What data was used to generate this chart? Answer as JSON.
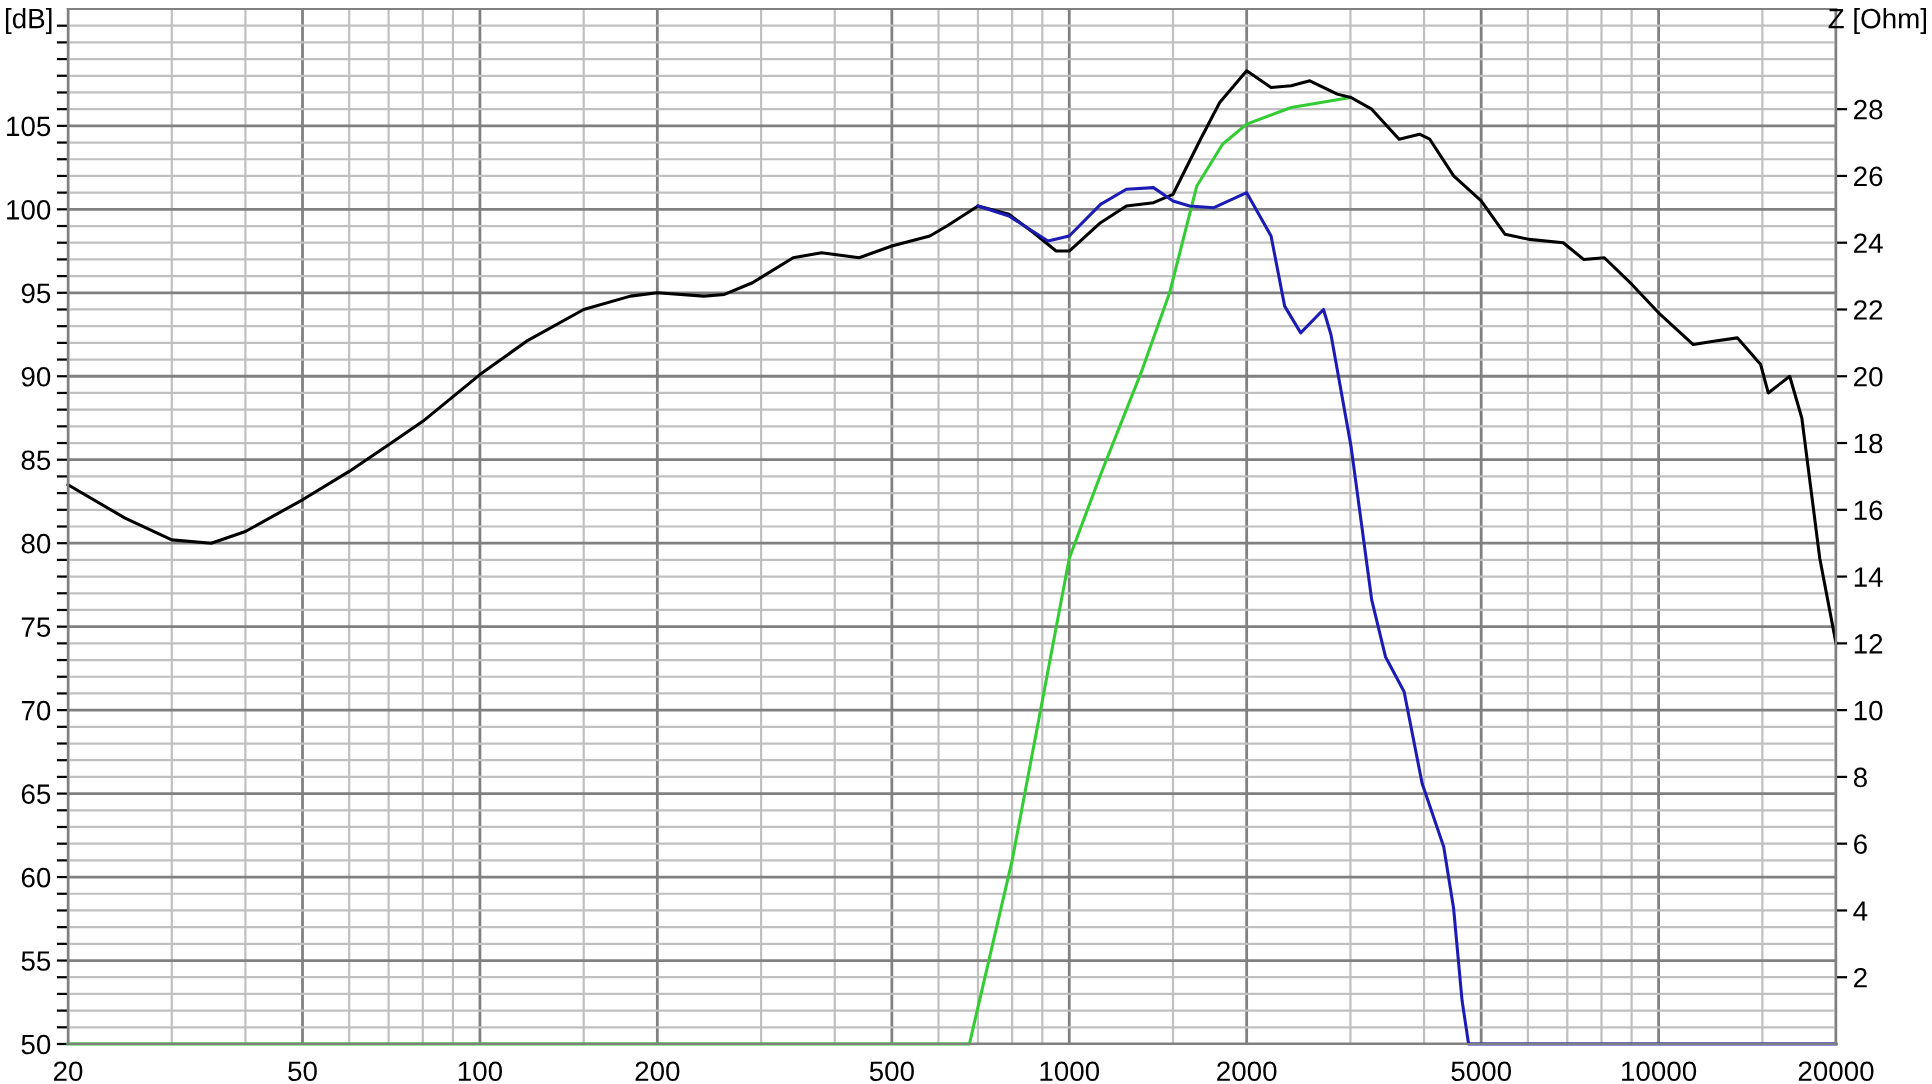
{
  "chart_data": {
    "type": "line",
    "ylabel": "[dB]",
    "y2label": "Z [Ohm]",
    "log": "x",
    "grid": true,
    "marker": "none",
    "line_style": "solid",
    "xlim": [
      20,
      20000
    ],
    "xticks": [
      20,
      {
        "value": 30,
        "label": null
      },
      {
        "value": 40,
        "label": null
      },
      50,
      {
        "value": 60,
        "label": null
      },
      {
        "value": 70,
        "label": null
      },
      {
        "value": 80,
        "label": null
      },
      {
        "value": 90,
        "label": null
      },
      100,
      {
        "value": 150,
        "label": null
      },
      200,
      {
        "value": 300,
        "label": null
      },
      {
        "value": 400,
        "label": null
      },
      500,
      {
        "value": 600,
        "label": null
      },
      {
        "value": 700,
        "label": null
      },
      {
        "value": 800,
        "label": null
      },
      {
        "value": 900,
        "label": null
      },
      1000,
      {
        "value": 1500,
        "label": null
      },
      2000,
      {
        "value": 3000,
        "label": null
      },
      {
        "value": 4000,
        "label": null
      },
      5000,
      {
        "value": 6000,
        "label": null
      },
      {
        "value": 7000,
        "label": null
      },
      {
        "value": 8000,
        "label": null
      },
      {
        "value": 9000,
        "label": null
      },
      10000,
      {
        "value": 15000,
        "label": null
      },
      20000
    ],
    "ylim": [
      50,
      112
    ],
    "yticks": [
      50,
      {
        "value": 51,
        "label": null
      },
      {
        "value": 52,
        "label": null
      },
      {
        "value": 53,
        "label": null
      },
      {
        "value": 54,
        "label": null
      },
      55,
      {
        "value": 56,
        "label": null
      },
      {
        "value": 57,
        "label": null
      },
      {
        "value": 58,
        "label": null
      },
      {
        "value": 59,
        "label": null
      },
      60,
      {
        "value": 61,
        "label": null
      },
      {
        "value": 62,
        "label": null
      },
      {
        "value": 63,
        "label": null
      },
      {
        "value": 64,
        "label": null
      },
      65,
      {
        "value": 66,
        "label": null
      },
      {
        "value": 67,
        "label": null
      },
      {
        "value": 68,
        "label": null
      },
      {
        "value": 69,
        "label": null
      },
      70,
      {
        "value": 71,
        "label": null
      },
      {
        "value": 72,
        "label": null
      },
      {
        "value": 73,
        "label": null
      },
      {
        "value": 74,
        "label": null
      },
      75,
      {
        "value": 76,
        "label": null
      },
      {
        "value": 77,
        "label": null
      },
      {
        "value": 78,
        "label": null
      },
      {
        "value": 79,
        "label": null
      },
      80,
      {
        "value": 81,
        "label": null
      },
      {
        "value": 82,
        "label": null
      },
      {
        "value": 83,
        "label": null
      },
      {
        "value": 84,
        "label": null
      },
      85,
      {
        "value": 86,
        "label": null
      },
      {
        "value": 87,
        "label": null
      },
      {
        "value": 88,
        "label": null
      },
      {
        "value": 89,
        "label": null
      },
      90,
      {
        "value": 91,
        "label": null
      },
      {
        "value": 92,
        "label": null
      },
      {
        "value": 93,
        "label": null
      },
      {
        "value": 94,
        "label": null
      },
      95,
      {
        "value": 96,
        "label": null
      },
      {
        "value": 97,
        "label": null
      },
      {
        "value": 98,
        "label": null
      },
      {
        "value": 99,
        "label": null
      },
      100,
      {
        "value": 101,
        "label": null
      },
      {
        "value": 102,
        "label": null
      },
      {
        "value": 103,
        "label": null
      },
      {
        "value": 104,
        "label": null
      },
      105,
      {
        "value": 106,
        "label": null
      },
      {
        "value": 107,
        "label": null
      },
      {
        "value": 108,
        "label": null
      },
      {
        "value": 109,
        "label": null
      },
      {
        "value": 110,
        "label": null
      },
      {
        "value": 111,
        "label": null
      }
    ],
    "y2lim": [
      0,
      31
    ],
    "y2ticks": [
      2,
      4,
      6,
      8,
      10,
      12,
      14,
      16,
      18,
      20,
      22,
      24,
      26,
      28
    ],
    "series": [
      {
        "color": "#33cc33",
        "x": [
          20,
          677,
          800,
          1000,
          1130,
          1330,
          1480,
          1646,
          1820,
          2000,
          2380,
          3000
        ],
        "values": [
          50,
          50,
          61.0,
          79.1,
          84.1,
          90.4,
          95.0,
          101.4,
          103.9,
          105.1,
          106.1,
          106.7
        ]
      },
      {
        "color": "#000000",
        "x": [
          20,
          25,
          30,
          35,
          40,
          50,
          60,
          70,
          80,
          100,
          120,
          150,
          180,
          200,
          240,
          260,
          290,
          340,
          380,
          440,
          500,
          580,
          620,
          700,
          790,
          870,
          950,
          1000,
          1130,
          1250,
          1390,
          1500,
          1670,
          1800,
          2000,
          2200,
          2380,
          2560,
          2850,
          3007,
          3260,
          3628,
          3930,
          4090,
          4490,
          5000,
          5490,
          6030,
          6890,
          7460,
          8090,
          9010,
          10000,
          11450,
          12400,
          13600,
          14900,
          15350,
          16690,
          17500,
          18770,
          20000
        ],
        "values": [
          83.5,
          81.5,
          80.2,
          80.0,
          80.7,
          82.6,
          84.3,
          85.9,
          87.3,
          90.1,
          92.1,
          94.0,
          94.8,
          95.0,
          94.8,
          94.9,
          95.6,
          97.1,
          97.4,
          97.1,
          97.8,
          98.4,
          99.0,
          100.2,
          99.7,
          98.6,
          97.5,
          97.5,
          99.2,
          100.2,
          100.4,
          100.9,
          104.2,
          106.4,
          108.3,
          107.3,
          107.4,
          107.7,
          106.9,
          106.7,
          106.0,
          104.2,
          104.5,
          104.2,
          102.0,
          100.5,
          98.5,
          98.2,
          98.0,
          97.0,
          97.1,
          95.5,
          93.8,
          91.9,
          92.1,
          92.3,
          90.7,
          89.0,
          90.0,
          87.5,
          79.1,
          74.0
        ]
      },
      {
        "color": "#1c1cb4",
        "x": [
          700,
          790,
          920,
          1000,
          1130,
          1250,
          1390,
          1500,
          1600,
          1760,
          2000,
          2200,
          2320,
          2470,
          2700,
          2780,
          3007,
          3260,
          3440,
          3700,
          3970,
          4320,
          4490,
          4640,
          4760,
          20000
        ],
        "values": [
          100.2,
          99.6,
          98.1,
          98.4,
          100.3,
          101.2,
          101.3,
          100.5,
          100.2,
          100.1,
          101.0,
          98.4,
          94.2,
          92.6,
          94.0,
          92.5,
          85.8,
          76.6,
          73.2,
          71.1,
          65.6,
          61.8,
          58.1,
          52.6,
          50,
          50
        ]
      }
    ]
  }
}
